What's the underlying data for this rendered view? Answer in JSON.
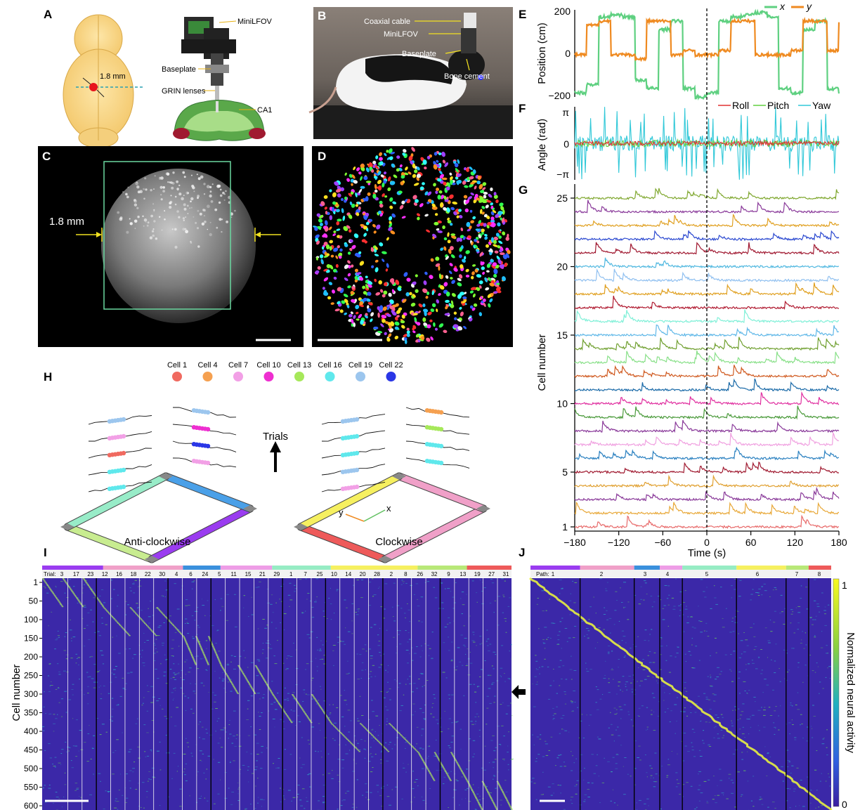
{
  "panels": {
    "A": {
      "label": "A",
      "scale": "1.8 mm",
      "callouts": [
        "MiniLFOV",
        "Baseplate",
        "GRIN lenses",
        "CA1"
      ]
    },
    "B": {
      "label": "B",
      "callouts": [
        "Coaxial cable",
        "MiniLFOV",
        "Baseplate",
        "Bone cement"
      ]
    },
    "C": {
      "label": "C",
      "scale": "1.8 mm"
    },
    "D": {
      "label": "D"
    },
    "E": {
      "label": "E",
      "ylabel": "Position (cm)",
      "legend": [
        "x",
        "y"
      ]
    },
    "F": {
      "label": "F",
      "ylabel": "Angle (rad)",
      "legend": [
        "Roll",
        "Pitch",
        "Yaw"
      ]
    },
    "G": {
      "label": "G",
      "ylabel": "Cell number",
      "xlabel": "Time (s)"
    },
    "H": {
      "label": "H",
      "trials_label": "Trials",
      "left_title": "Anti-clockwise",
      "right_title": "Clockwise",
      "axis_x": "x",
      "axis_y": "y"
    },
    "I": {
      "label": "I",
      "ylabel": "Cell number",
      "trial_prefix": "Trial:"
    },
    "J": {
      "label": "J",
      "path_prefix": "Path:",
      "cbar_label": "Normalized neural activity",
      "cbar_ticks": [
        "1",
        "0"
      ]
    }
  },
  "cell_legend": [
    {
      "name": "Cell 1",
      "color": "#f06a60"
    },
    {
      "name": "Cell 4",
      "color": "#f5a050"
    },
    {
      "name": "Cell 7",
      "color": "#f2a0e6"
    },
    {
      "name": "Cell 10",
      "color": "#ee2fd0"
    },
    {
      "name": "Cell 13",
      "color": "#a6e85a"
    },
    {
      "name": "Cell 16",
      "color": "#5fe8ec"
    },
    {
      "name": "Cell 19",
      "color": "#9cc6ee"
    },
    {
      "name": "Cell 22",
      "color": "#2a36e6"
    }
  ],
  "position_ticks": [
    "200",
    "0",
    "−200"
  ],
  "angle_ticks": [
    "π",
    "0",
    "−π"
  ],
  "cell_ticks": [
    "25",
    "20",
    "15",
    "10",
    "5",
    "1"
  ],
  "time_ticks": [
    "−180",
    "−120",
    "−60",
    "0",
    "60",
    "120",
    "180"
  ],
  "I_cell_ticks": [
    "1",
    "50",
    "100",
    "150",
    "200",
    "250",
    "300",
    "350",
    "400",
    "450",
    "500",
    "550",
    "600"
  ],
  "I_trials": [
    "3",
    "17",
    "23",
    "12",
    "16",
    "18",
    "22",
    "30",
    "4",
    "6",
    "24",
    "5",
    "11",
    "15",
    "21",
    "29",
    "1",
    "7",
    "25",
    "10",
    "14",
    "20",
    "28",
    "2",
    "8",
    "26",
    "32",
    "9",
    "13",
    "19",
    "27",
    "31"
  ],
  "J_paths": [
    "1",
    "2",
    "3",
    "4",
    "5",
    "6",
    "7",
    "8"
  ],
  "path_colors": [
    "#9a3cf0",
    "#f0a0c8",
    "#3a90dd",
    "#ee9de6",
    "#96ecc4",
    "#f6f060",
    "#b8e878",
    "#ee5a5a"
  ],
  "trace_colors": [
    "#e86a6a",
    "#e8a838",
    "#8a3a9a",
    "#e0a030",
    "#a01a30",
    "#2a80c0",
    "#f0a0e0",
    "#8a3a9a",
    "#4a9a3a",
    "#e030a0",
    "#1a6aa8",
    "#d05a20",
    "#88e088",
    "#70a030",
    "#60b8e8",
    "#80f0d8",
    "#b01a30",
    "#e0a020",
    "#90c0f0",
    "#50b8e0",
    "#a01830",
    "#2a48d0",
    "#e0a020",
    "#8a3a9a",
    "#80a830"
  ]
}
